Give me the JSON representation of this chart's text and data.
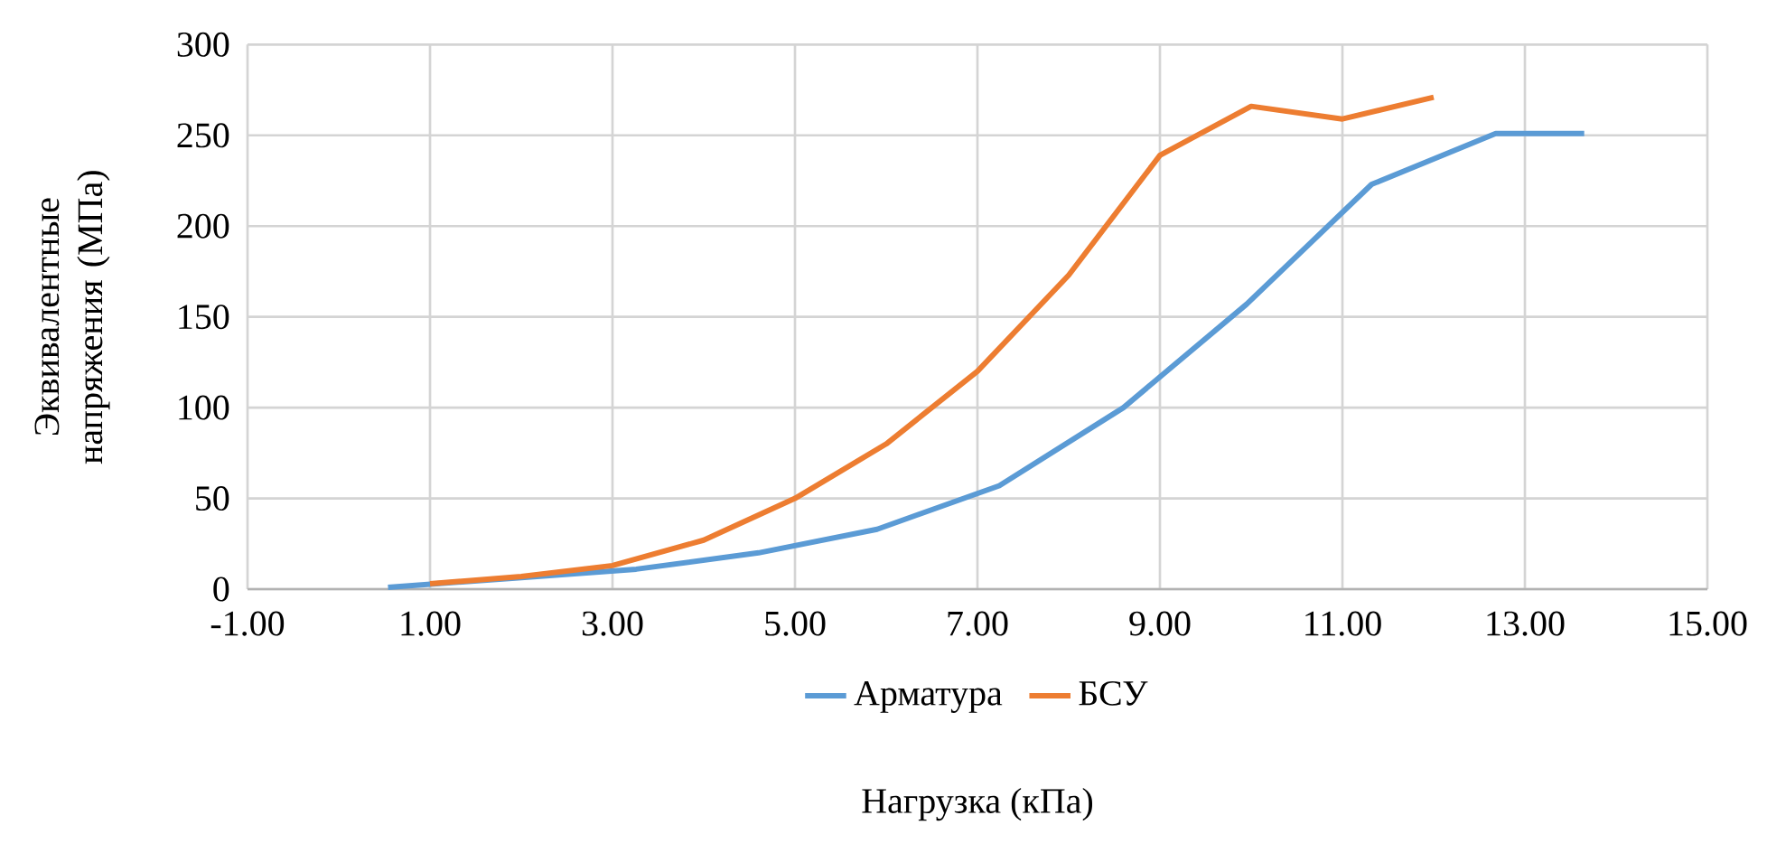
{
  "chart_data": {
    "type": "line",
    "xlabel": "Нагрузка (кПа)",
    "ylabel": "Эквивалентные напряжения (МПа)",
    "series": [
      {
        "name": "Арматура",
        "color": "#5b9bd5",
        "x": [
          0.54,
          1.9,
          3.26,
          4.6,
          5.9,
          7.24,
          8.6,
          9.95,
          11.32,
          12.68,
          13.65
        ],
        "values": [
          1,
          6,
          11,
          20,
          33,
          57,
          100,
          157,
          223,
          251,
          251
        ]
      },
      {
        "name": "БСУ",
        "color": "#ed7d31",
        "x": [
          1,
          2,
          3,
          4,
          5,
          6,
          7,
          8,
          9,
          10,
          11,
          12
        ],
        "values": [
          3,
          7,
          13,
          27,
          50,
          80,
          120,
          173,
          239,
          266,
          259,
          271
        ]
      }
    ],
    "xlim": [
      -1,
      15
    ],
    "xticks": [
      {
        "value": -1,
        "label": "-1.00"
      },
      {
        "value": 1,
        "label": "1.00"
      },
      {
        "value": 3,
        "label": "3.00"
      },
      {
        "value": 5,
        "label": "5.00"
      },
      {
        "value": 7,
        "label": "7.00"
      },
      {
        "value": 9,
        "label": "9.00"
      },
      {
        "value": 11,
        "label": "11.00"
      },
      {
        "value": 13,
        "label": "13.00"
      },
      {
        "value": 15,
        "label": "15.00"
      }
    ],
    "ylim": [
      0,
      300
    ],
    "yticks": [
      0,
      50,
      100,
      150,
      200,
      250,
      300
    ],
    "grid": true,
    "legend": "bottom",
    "marker": "none",
    "line_style": "solid"
  }
}
